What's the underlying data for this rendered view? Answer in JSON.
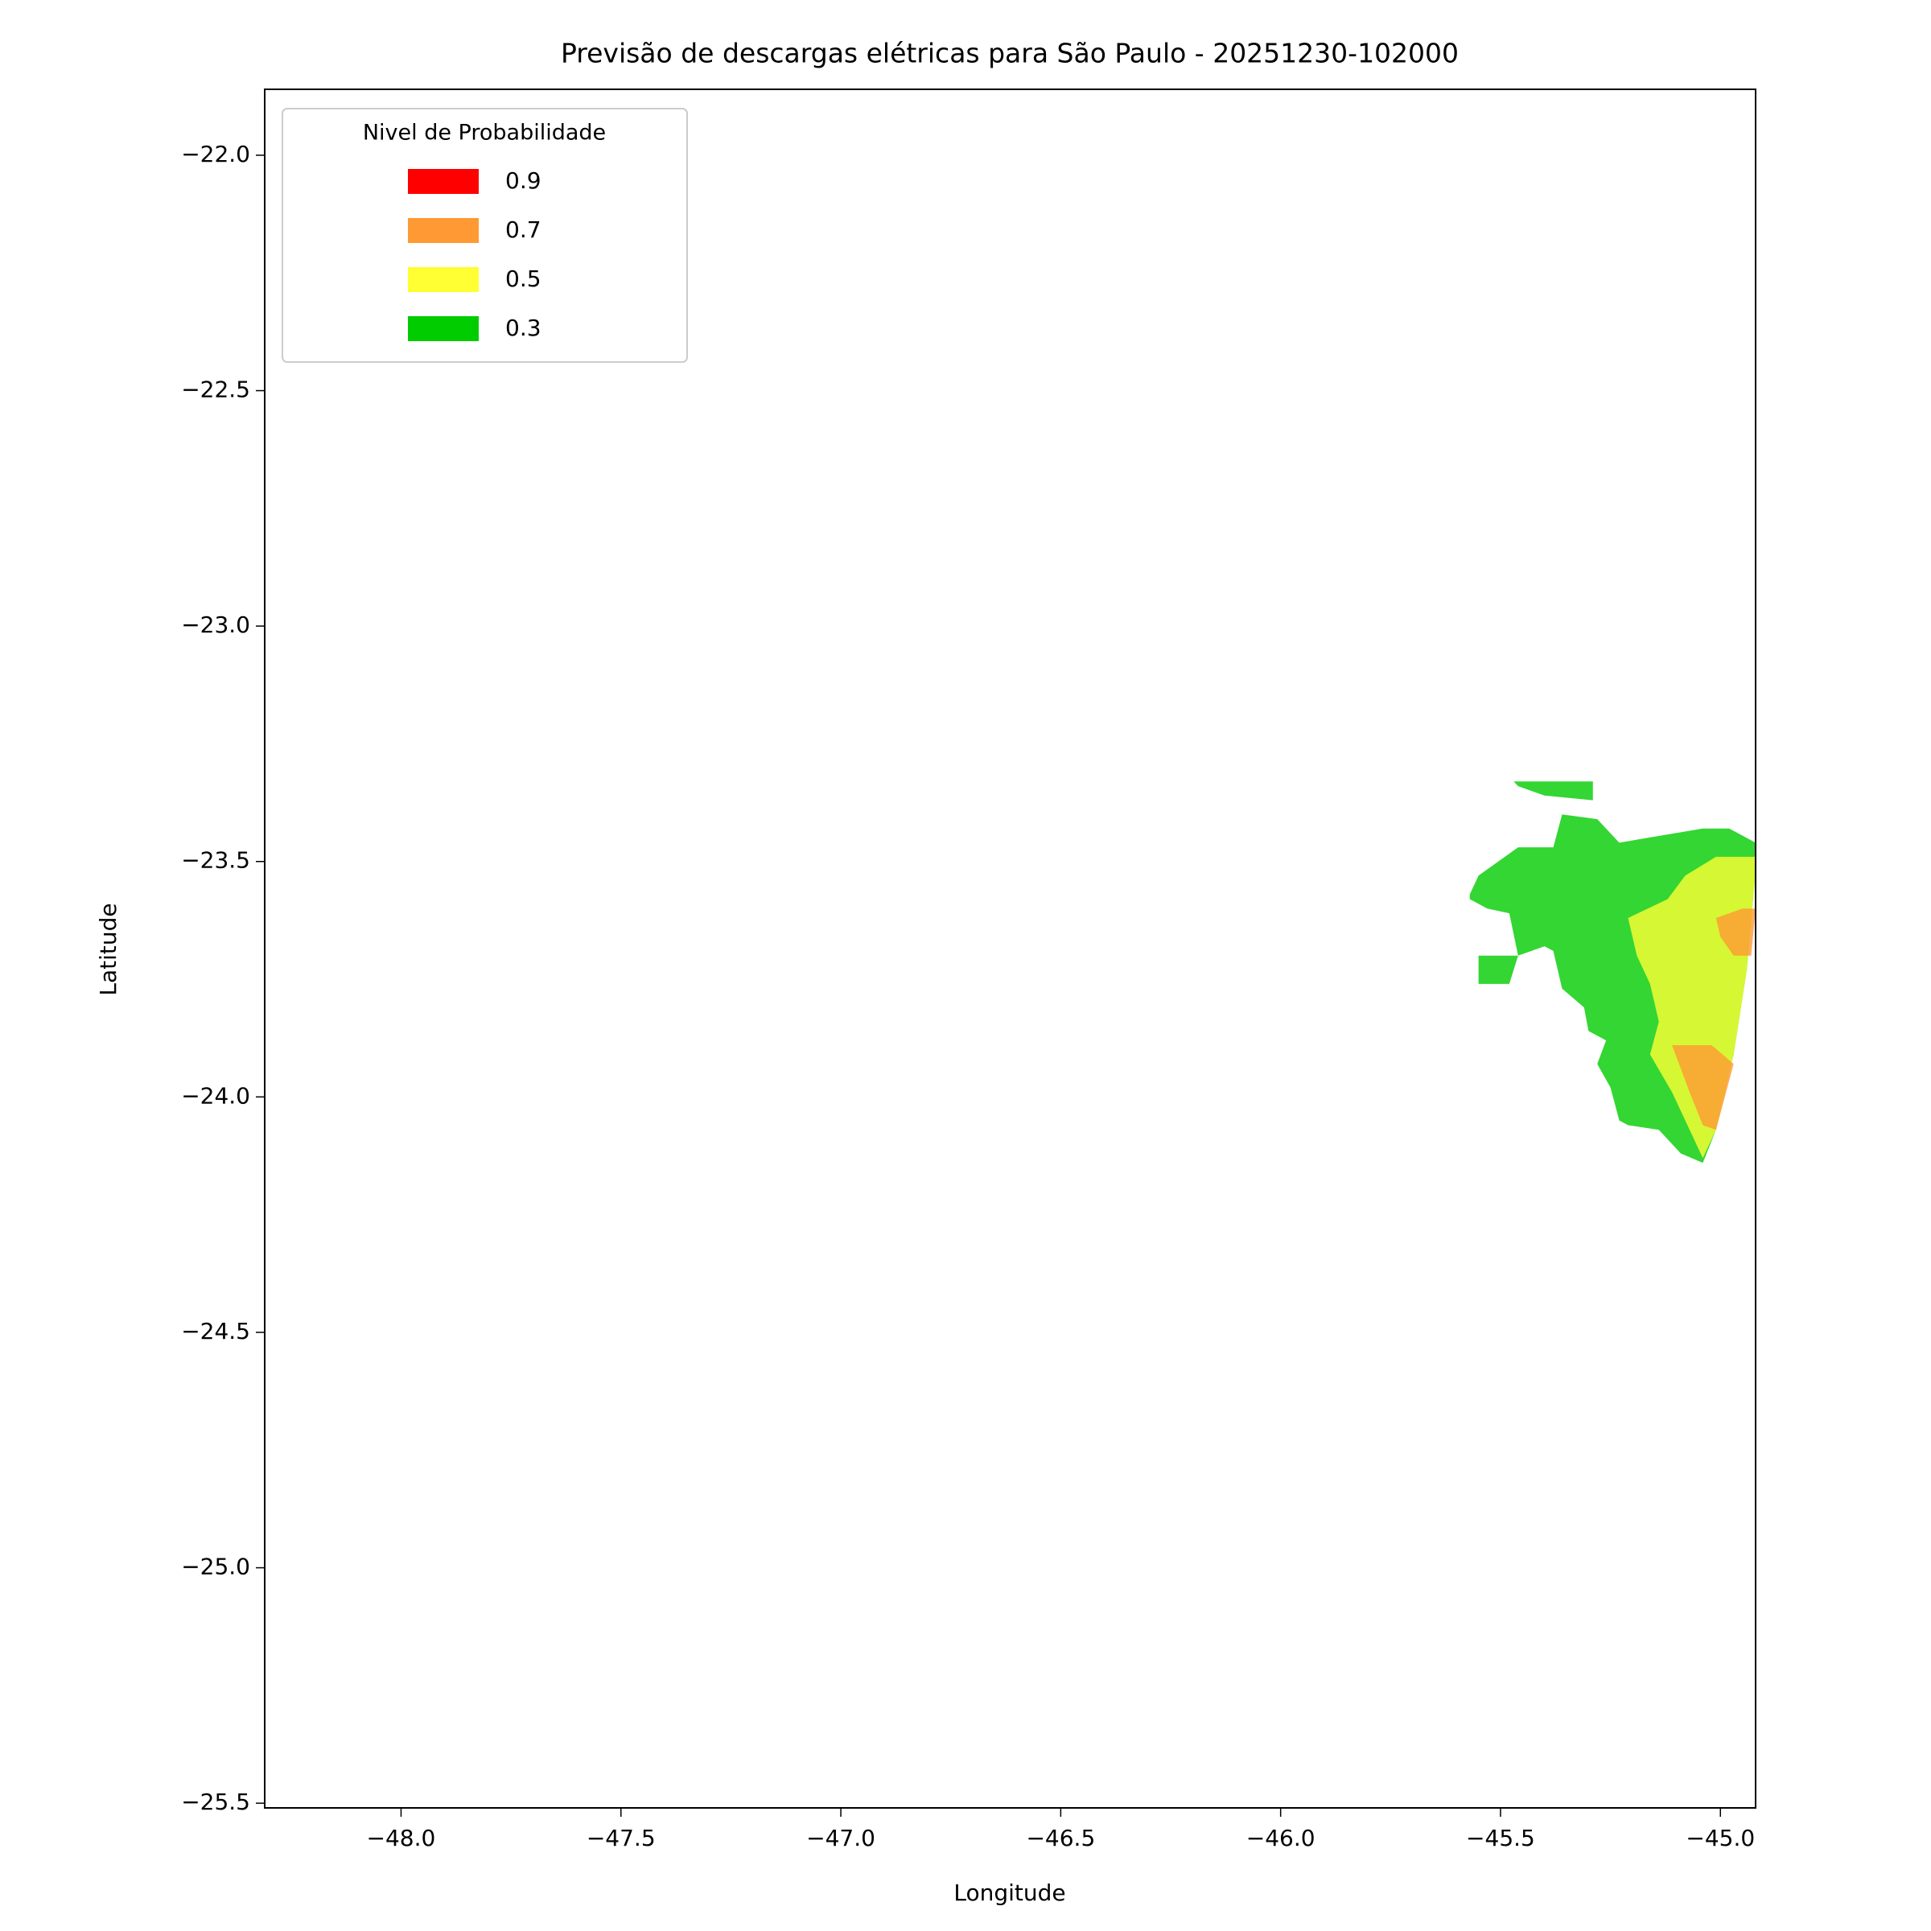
{
  "chart_data": {
    "type": "contour",
    "title": "Previsão de descargas elétricas para São Paulo - 20251230-102000",
    "x_label": "Longitude",
    "y_label": "Latitude",
    "legend_title": "Nivel de Probabilidade",
    "legend_position": "upper left",
    "xlim": [
      -48.31,
      -44.92
    ],
    "ylim": [
      -25.51,
      -21.86
    ],
    "xticks": [
      {
        "value": -48.0,
        "label": "−48.0"
      },
      {
        "value": -47.5,
        "label": "−47.5"
      },
      {
        "value": -47.0,
        "label": "−47.0"
      },
      {
        "value": -46.5,
        "label": "−46.5"
      },
      {
        "value": -46.0,
        "label": "−46.0"
      },
      {
        "value": -45.5,
        "label": "−45.5"
      },
      {
        "value": -45.0,
        "label": "−45.0"
      }
    ],
    "yticks": [
      {
        "value": -22.0,
        "label": "−22.0"
      },
      {
        "value": -22.5,
        "label": "−22.5"
      },
      {
        "value": -23.0,
        "label": "−23.0"
      },
      {
        "value": -23.5,
        "label": "−23.5"
      },
      {
        "value": -24.0,
        "label": "−24.0"
      },
      {
        "value": -24.5,
        "label": "−24.5"
      },
      {
        "value": -25.0,
        "label": "−25.0"
      },
      {
        "value": -25.5,
        "label": "−25.5"
      }
    ],
    "series": [
      {
        "name": "0.9",
        "color": "#ff0000",
        "polygons": []
      },
      {
        "name": "0.7",
        "color": "#ff9933",
        "polygons": [
          {
            "lon": [
              -45.01,
              -44.95,
              -44.92,
              -44.93,
              -44.97,
              -45.0
            ],
            "lat": [
              -23.62,
              -23.6,
              -23.6,
              -23.7,
              -23.7,
              -23.66
            ]
          },
          {
            "lon": [
              -45.11,
              -45.02,
              -44.97,
              -45.01,
              -45.04,
              -45.07
            ],
            "lat": [
              -23.89,
              -23.89,
              -23.93,
              -24.07,
              -24.06,
              -23.99
            ]
          }
        ]
      },
      {
        "name": "0.5",
        "color": "#ffff33",
        "polygons": [
          {
            "lon": [
              -45.21,
              -45.12,
              -45.08,
              -45.01,
              -44.92,
              -44.92,
              -44.94,
              -44.97,
              -45.01,
              -45.04,
              -45.07,
              -45.11,
              -45.16,
              -45.14,
              -45.16,
              -45.19
            ],
            "lat": [
              -23.62,
              -23.58,
              -23.53,
              -23.49,
              -23.49,
              -23.52,
              -23.73,
              -23.91,
              -24.07,
              -24.13,
              -24.07,
              -23.99,
              -23.91,
              -23.84,
              -23.76,
              -23.7
            ]
          }
        ]
      },
      {
        "name": "0.3",
        "color": "#00cc00",
        "polygons": [
          {
            "lon": [
              -45.57,
              -45.55,
              -45.46,
              -45.38,
              -45.36,
              -45.28,
              -45.23,
              -45.04,
              -44.98,
              -44.92,
              -44.92,
              -44.94,
              -44.97,
              -45.01,
              -45.04,
              -45.09,
              -45.14,
              -45.21,
              -45.23,
              -45.25,
              -45.28,
              -45.26,
              -45.3,
              -45.31,
              -45.36,
              -45.38,
              -45.4,
              -45.46,
              -45.48,
              -45.55,
              -45.55,
              -45.46,
              -45.48,
              -45.53,
              -45.57
            ],
            "lat": [
              -23.57,
              -23.53,
              -23.47,
              -23.47,
              -23.4,
              -23.41,
              -23.46,
              -23.43,
              -23.43,
              -23.46,
              -23.52,
              -23.73,
              -23.91,
              -24.07,
              -24.14,
              -24.12,
              -24.07,
              -24.06,
              -24.05,
              -23.98,
              -23.93,
              -23.88,
              -23.86,
              -23.81,
              -23.77,
              -23.69,
              -23.68,
              -23.7,
              -23.76,
              -23.76,
              -23.7,
              -23.7,
              -23.61,
              -23.6,
              -23.58
            ]
          },
          {
            "lon": [
              -45.47,
              -45.42,
              -45.29,
              -45.29,
              -45.4,
              -45.46
            ],
            "lat": [
              -23.33,
              -23.33,
              -23.33,
              -23.37,
              -23.36,
              -23.34
            ]
          }
        ]
      }
    ]
  }
}
